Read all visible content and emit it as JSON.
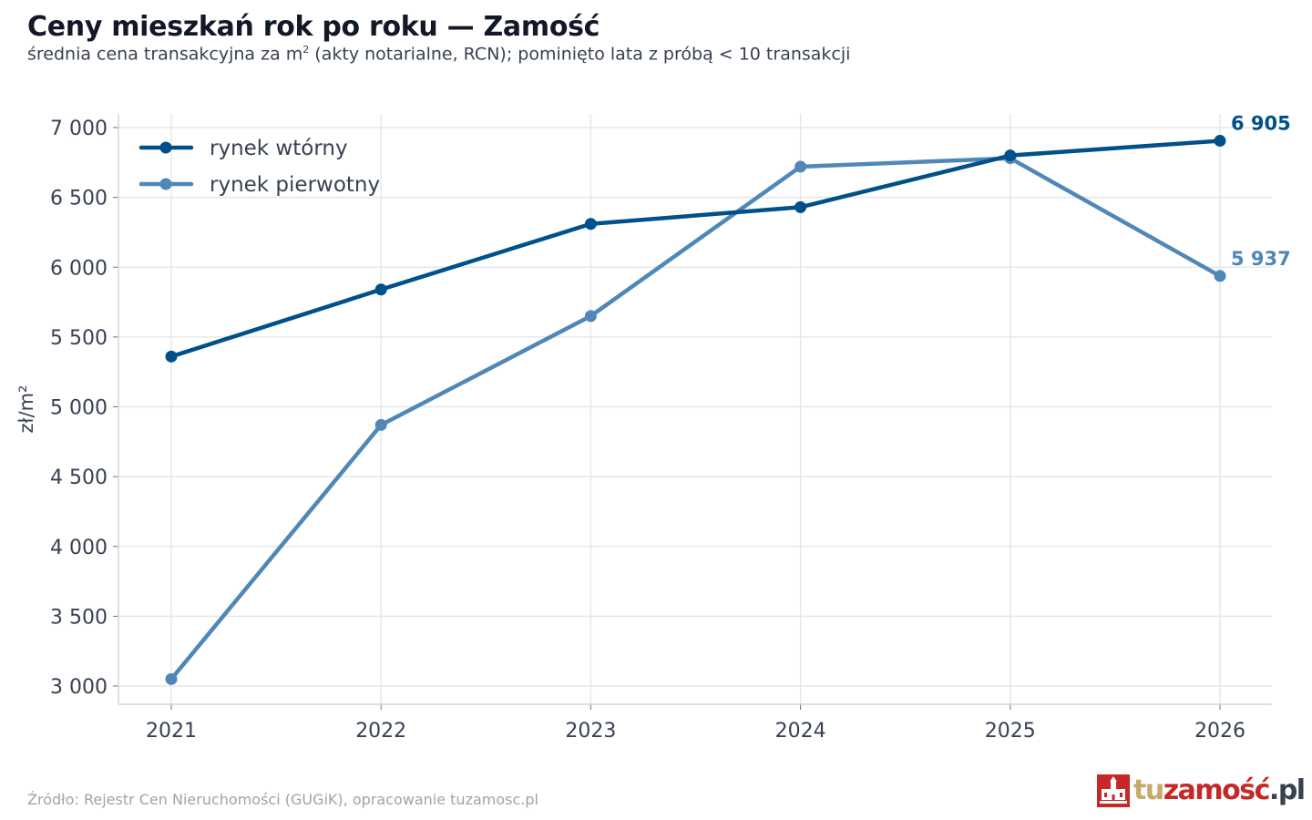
{
  "title": "Ceny mieszkań rok po roku — Zamość",
  "subtitle_pre": "średnia cena transakcyjna za m",
  "subtitle_sup": "2",
  "subtitle_post": " (akty notarialne, RCN); pominięto lata z próbą < 10 transakcji",
  "source": "Źródło: Rejestr Cen Nieruchomości (GUGiK), opracowanie tuzamosc.pl",
  "logo": {
    "part1": "tu",
    "part2": "zamość",
    "part3": ".pl"
  },
  "chart_data": {
    "type": "line",
    "x": [
      "2021",
      "2022",
      "2023",
      "2024",
      "2025",
      "2026"
    ],
    "series": [
      {
        "name": "rynek wtórny",
        "color": "#00508a",
        "values": [
          5360,
          5840,
          6310,
          6430,
          6800,
          6905
        ],
        "end_label": "6 905"
      },
      {
        "name": "rynek pierwotny",
        "color": "#4f88b8",
        "values": [
          3050,
          4870,
          5650,
          6720,
          6780,
          5937
        ],
        "end_label": "5 937"
      }
    ],
    "ylabel": "zł/m²",
    "ylim": [
      3000,
      7000
    ],
    "yticks": [
      3000,
      3500,
      4000,
      4500,
      5000,
      5500,
      6000,
      6500,
      7000
    ],
    "ytick_labels": [
      "3 000",
      "3 500",
      "4 000",
      "4 500",
      "5 000",
      "5 500",
      "6 000",
      "6 500",
      "7 000"
    ],
    "grid": true,
    "legend_position": "top-left"
  }
}
